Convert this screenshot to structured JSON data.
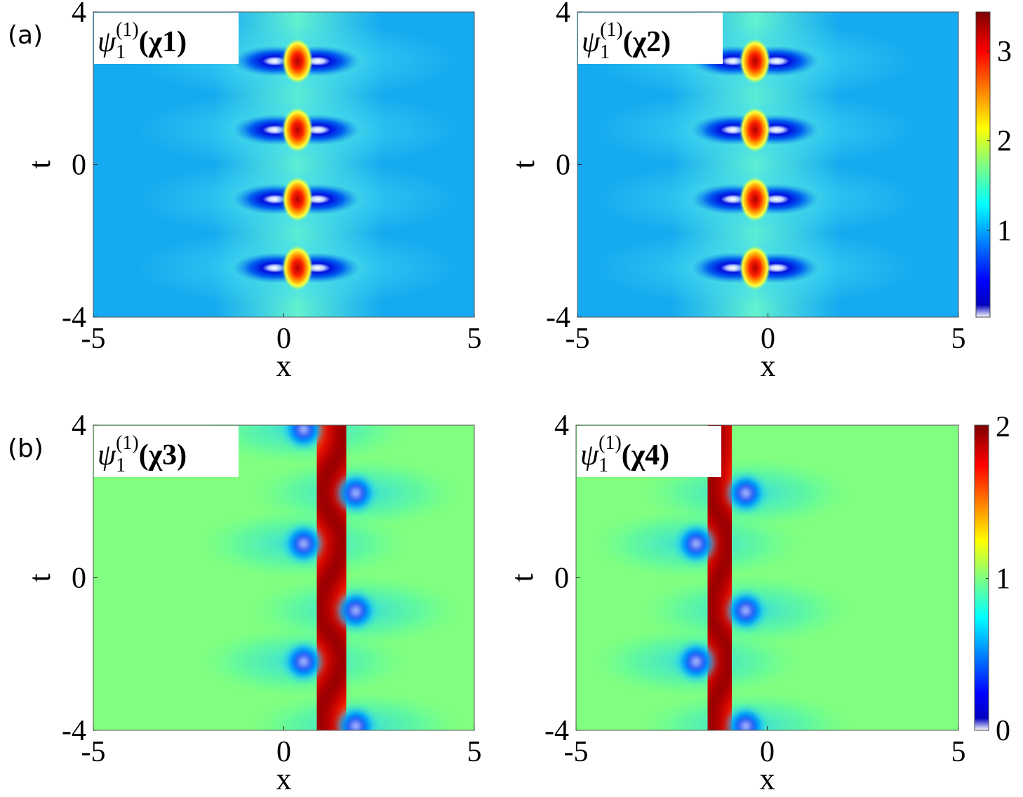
{
  "chart_data": [
    {
      "type": "heatmap",
      "panel_label": "(a)",
      "label": {
        "symbol": "ψ",
        "sub": "1",
        "sup": "(1)",
        "arg": "(χ1)"
      },
      "xlabel": "x",
      "ylabel": "t",
      "xlim": [
        -5,
        5
      ],
      "ylim": [
        -4,
        4
      ],
      "xticks": [
        -5,
        0,
        5
      ],
      "yticks": [
        -4,
        0,
        4
      ],
      "background": "#16aaf0",
      "peaks": {
        "x": [
          0.36,
          0.36,
          0.36,
          0.36
        ],
        "t": [
          2.71,
          0.91,
          -0.91,
          -2.71
        ]
      },
      "holes": {
        "x": [
          -0.23,
          0.89,
          -0.23,
          0.89,
          -0.23,
          0.89,
          -0.23,
          0.89
        ],
        "t": [
          2.71,
          2.71,
          0.91,
          0.91,
          -0.91,
          -0.91,
          -2.71,
          -2.71
        ]
      }
    },
    {
      "type": "heatmap",
      "label": {
        "symbol": "ψ",
        "sub": "1",
        "sup": "(1)",
        "arg": "(χ2)"
      },
      "xlabel": "x",
      "ylabel": "t",
      "xlim": [
        -5,
        5
      ],
      "ylim": [
        -4,
        4
      ],
      "xticks": [
        -5,
        0,
        5
      ],
      "yticks": [
        -4,
        0,
        4
      ],
      "background": "#16aaf0",
      "peaks": {
        "x": [
          -0.34,
          -0.34,
          -0.34,
          -0.34
        ],
        "t": [
          2.71,
          0.91,
          -0.91,
          -2.71
        ]
      },
      "holes": {
        "x": [
          -0.91,
          0.23,
          -0.91,
          0.23,
          -0.91,
          0.23,
          -0.91,
          0.23
        ],
        "t": [
          2.71,
          2.71,
          0.91,
          0.91,
          -0.91,
          -0.91,
          -2.71,
          -2.71
        ]
      },
      "colorbar": {
        "clim": [
          0.03,
          3.44
        ],
        "ticks": [
          1,
          2,
          3
        ]
      }
    },
    {
      "type": "heatmap",
      "panel_label": "(b)",
      "label": {
        "symbol": "ψ",
        "sub": "1",
        "sup": "(1)",
        "arg": "(χ3)"
      },
      "xlabel": "x",
      "ylabel": "t",
      "xlim": [
        -5,
        5
      ],
      "ylim": [
        -4,
        4
      ],
      "xticks": [
        -5,
        0,
        5
      ],
      "yticks": [
        -4,
        0,
        4
      ],
      "background": "#80ff80",
      "ridge": {
        "x": [
          1.57,
          1.0,
          1.52,
          0.93,
          1.52,
          0.93
        ],
        "t": [
          3.75,
          2.2,
          0.97,
          -0.87,
          -2.1,
          -3.75
        ]
      },
      "holes": {
        "x": [
          0.52,
          1.89,
          0.52,
          1.89,
          0.52,
          1.89
        ],
        "t": [
          3.89,
          2.22,
          0.89,
          -0.86,
          -2.2,
          -3.89
        ]
      }
    },
    {
      "type": "heatmap",
      "label": {
        "symbol": "ψ",
        "sub": "1",
        "sup": "(1)",
        "arg": "(χ4)"
      },
      "xlabel": "x",
      "ylabel": "t",
      "xlim": [
        -5,
        5
      ],
      "ylim": [
        -4,
        4
      ],
      "xticks": [
        -5,
        0,
        5
      ],
      "yticks": [
        -4,
        0,
        4
      ],
      "background": "#80ff80",
      "ridge": {
        "x": [
          -1.35,
          -1.5,
          -0.98,
          -1.5,
          -0.98,
          -1.5
        ],
        "t": [
          3.75,
          2.2,
          0.97,
          -0.87,
          -2.1,
          -3.75
        ]
      },
      "holes": {
        "x": [
          -0.56,
          -1.86,
          -0.56,
          -1.86,
          -0.56
        ],
        "t": [
          2.22,
          0.89,
          -0.86,
          -2.2,
          -3.89
        ]
      },
      "colorbar": {
        "clim": [
          0,
          2.01
        ],
        "ticks": [
          0,
          1,
          2
        ]
      }
    }
  ]
}
